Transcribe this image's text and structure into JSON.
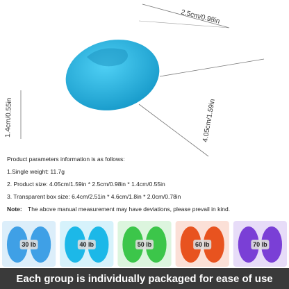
{
  "dimensions": {
    "width": "2.5cm/0.98in",
    "height": "1.4cm/0.55in",
    "length": "4.05cm/1.59in"
  },
  "params": {
    "heading": "Product parameters information is as follows:",
    "lines": [
      "1.Single weight:  11.7g",
      "2. Product size:   4.05cm/1.59in * 2.5cm/0.98in * 1.4cm/0.55in",
      "3. Transparent box size: 6.4cm/2.51in * 4.6cm/1.8in * 2.0cm/0.78in"
    ],
    "note_label": "Note:",
    "note": "The above manual measurement may have deviations, please prevail in kind."
  },
  "variants": [
    {
      "label": "30 lb",
      "color": "#3fa0e6"
    },
    {
      "label": "40 lb",
      "color": "#1cb8e8"
    },
    {
      "label": "50 lb",
      "color": "#3cc64a"
    },
    {
      "label": "60 lb",
      "color": "#e8531f"
    },
    {
      "label": "70 lb",
      "color": "#7a3fd6"
    }
  ],
  "banner": "Each group is individually packaged for ease of use"
}
